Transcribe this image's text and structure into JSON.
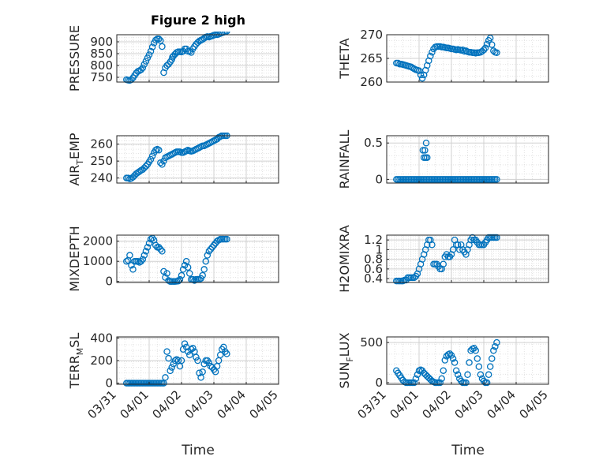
{
  "figure": {
    "title": "Figure 2 high",
    "xlabel": "Time"
  },
  "style": {
    "marker_color": "#0072BD",
    "axis_color": "#262626",
    "grid_color": "#dcdcdc"
  },
  "chart_data": [
    {
      "type": "scatter",
      "id": "pressure",
      "ylabel": "PRESSURE",
      "ylim": [
        730,
        930
      ],
      "yticks": [
        750,
        800,
        850,
        900
      ],
      "xlim": [
        0,
        5
      ],
      "xticks": [
        "03/31",
        "04/01",
        "04/02",
        "04/03",
        "04/04",
        "04/05"
      ],
      "grid": true,
      "x": [
        0.3,
        0.35,
        0.4,
        0.45,
        0.5,
        0.55,
        0.6,
        0.65,
        0.7,
        0.75,
        0.8,
        0.85,
        0.9,
        0.95,
        1.0,
        1.05,
        1.1,
        1.15,
        1.2,
        1.25,
        1.3,
        1.35,
        1.4,
        1.45,
        1.5,
        1.55,
        1.6,
        1.65,
        1.7,
        1.72,
        1.75,
        1.8,
        1.85,
        1.9,
        1.95,
        2.0,
        2.05,
        2.1,
        2.15,
        2.2,
        2.25,
        2.3,
        2.35,
        2.4,
        2.45,
        2.5,
        2.55,
        2.6,
        2.65,
        2.7,
        2.75,
        2.8,
        2.85,
        2.9,
        2.95,
        3.0,
        3.05,
        3.1,
        3.15,
        3.2,
        3.25,
        3.3,
        3.35,
        3.4
      ],
      "y": [
        740,
        738,
        737,
        740,
        748,
        758,
        768,
        775,
        778,
        782,
        790,
        805,
        818,
        832,
        845,
        860,
        878,
        895,
        907,
        912,
        912,
        905,
        880,
        770,
        790,
        800,
        805,
        815,
        825,
        835,
        840,
        848,
        855,
        858,
        858,
        857,
        860,
        870,
        870,
        860,
        860,
        855,
        870,
        880,
        890,
        897,
        903,
        907,
        910,
        915,
        920,
        922,
        920,
        923,
        925,
        928,
        930,
        930,
        932,
        935,
        938,
        940,
        942,
        945
      ]
    },
    {
      "type": "scatter",
      "id": "theta",
      "ylabel": "THETA",
      "ylim": [
        260,
        270
      ],
      "yticks": [
        260,
        265,
        270
      ],
      "xlim": [
        0,
        5
      ],
      "xticks": [
        "03/31",
        "04/01",
        "04/02",
        "04/03",
        "04/04",
        "04/05"
      ],
      "grid": true,
      "x": [
        0.3,
        0.35,
        0.4,
        0.45,
        0.5,
        0.55,
        0.6,
        0.65,
        0.7,
        0.75,
        0.8,
        0.85,
        0.9,
        0.95,
        1.0,
        1.05,
        1.1,
        1.15,
        1.2,
        1.25,
        1.3,
        1.35,
        1.4,
        1.45,
        1.5,
        1.55,
        1.6,
        1.65,
        1.7,
        1.75,
        1.8,
        1.85,
        1.9,
        1.95,
        2.0,
        2.05,
        2.1,
        2.15,
        2.2,
        2.25,
        2.3,
        2.35,
        2.4,
        2.45,
        2.5,
        2.55,
        2.6,
        2.65,
        2.7,
        2.75,
        2.8,
        2.85,
        2.9,
        2.95,
        3.0,
        3.05,
        3.1,
        3.15,
        3.2,
        3.25,
        3.3,
        3.35,
        3.4
      ],
      "y": [
        264,
        264,
        263.8,
        263.8,
        263.7,
        263.6,
        263.5,
        263.4,
        263.3,
        263.2,
        263.0,
        262.8,
        262.6,
        262.5,
        262.4,
        261.5,
        260.8,
        261.5,
        262.5,
        263.5,
        264.5,
        265.5,
        266.3,
        267.0,
        267.4,
        267.5,
        267.5,
        267.5,
        267.4,
        267.4,
        267.3,
        267.2,
        267.2,
        267.1,
        267.0,
        267.0,
        266.9,
        266.8,
        266.9,
        266.8,
        266.7,
        266.8,
        266.5,
        266.6,
        266.4,
        266.3,
        266.3,
        266.2,
        266.2,
        266.1,
        266.2,
        266.2,
        266.3,
        266.5,
        266.8,
        267.2,
        268.0,
        268.8,
        269.3,
        267.9,
        266.6,
        266.3,
        266.2
      ]
    },
    {
      "type": "scatter",
      "id": "air_temp",
      "ylabel": "AIR",
      "ylabel_sub": "T",
      "ylabel_rest": "EMP",
      "ylim": [
        237,
        265
      ],
      "yticks": [
        240,
        250,
        260
      ],
      "xlim": [
        0,
        5
      ],
      "xticks": [
        "03/31",
        "04/01",
        "04/02",
        "04/03",
        "04/04",
        "04/05"
      ],
      "grid": true,
      "x": [
        0.3,
        0.35,
        0.4,
        0.45,
        0.5,
        0.55,
        0.6,
        0.65,
        0.7,
        0.75,
        0.8,
        0.85,
        0.9,
        0.95,
        1.0,
        1.05,
        1.1,
        1.15,
        1.2,
        1.25,
        1.3,
        1.35,
        1.4,
        1.45,
        1.5,
        1.55,
        1.6,
        1.65,
        1.7,
        1.75,
        1.8,
        1.85,
        1.9,
        1.95,
        2.0,
        2.05,
        2.1,
        2.15,
        2.2,
        2.25,
        2.3,
        2.35,
        2.4,
        2.45,
        2.5,
        2.55,
        2.6,
        2.65,
        2.7,
        2.75,
        2.8,
        2.85,
        2.9,
        2.95,
        3.0,
        3.05,
        3.1,
        3.15,
        3.2,
        3.25,
        3.3,
        3.35,
        3.4
      ],
      "y": [
        240,
        240,
        239.5,
        239.8,
        240.5,
        241.5,
        242.5,
        243.2,
        243.8,
        244.5,
        245,
        246,
        247,
        248,
        249.5,
        251,
        253,
        255,
        256.5,
        257,
        256.5,
        249,
        248,
        250,
        252,
        252.5,
        253,
        253.5,
        254,
        254.5,
        255,
        255.5,
        255.5,
        255.5,
        255,
        255,
        255.5,
        256,
        256.5,
        256,
        255.8,
        256,
        256.5,
        257,
        257.5,
        258,
        258.5,
        259,
        259,
        259.5,
        260,
        260.5,
        261,
        261.5,
        262,
        262.5,
        263,
        264,
        264.5,
        265,
        265,
        265,
        265
      ]
    },
    {
      "type": "scatter",
      "id": "rainfall",
      "ylabel": "RAINFALL",
      "ylim": [
        -0.05,
        0.6
      ],
      "yticks": [
        0,
        0.5
      ],
      "xlim": [
        0,
        5
      ],
      "xticks": [
        "03/31",
        "04/01",
        "04/02",
        "04/03",
        "04/04",
        "04/05"
      ],
      "grid": true,
      "x": [
        0.3,
        0.35,
        0.4,
        0.45,
        0.5,
        0.55,
        0.6,
        0.65,
        0.7,
        0.75,
        0.8,
        0.85,
        0.9,
        0.95,
        1.0,
        1.05,
        1.1,
        1.15,
        1.2,
        1.25,
        1.3,
        1.35,
        1.4,
        1.45,
        1.5,
        1.55,
        1.6,
        1.65,
        1.7,
        1.75,
        1.8,
        1.85,
        1.9,
        1.95,
        2.0,
        2.05,
        2.1,
        2.15,
        2.2,
        2.25,
        2.3,
        2.35,
        2.4,
        2.45,
        2.5,
        2.55,
        2.6,
        2.65,
        2.7,
        2.75,
        2.8,
        2.85,
        2.9,
        2.95,
        3.0,
        3.05,
        3.1,
        3.15,
        3.2,
        3.25,
        3.3,
        3.35,
        3.4,
        1.12,
        1.15,
        1.18,
        1.2,
        1.22,
        1.25
      ],
      "y": [
        0,
        0,
        0,
        0,
        0,
        0,
        0,
        0,
        0,
        0,
        0,
        0,
        0,
        0,
        0,
        0,
        0,
        0,
        0,
        0,
        0,
        0,
        0,
        0,
        0,
        0,
        0,
        0,
        0,
        0,
        0,
        0,
        0,
        0,
        0,
        0,
        0,
        0,
        0,
        0,
        0,
        0,
        0,
        0,
        0,
        0,
        0,
        0,
        0,
        0,
        0,
        0,
        0,
        0,
        0,
        0,
        0,
        0,
        0,
        0,
        0,
        0,
        0,
        0.4,
        0.3,
        0.4,
        0.3,
        0.5,
        0.3
      ]
    },
    {
      "type": "scatter",
      "id": "mixdepth",
      "ylabel": "MIXDEPTH",
      "ylim": [
        -50,
        2300
      ],
      "yticks": [
        0,
        1000,
        2000
      ],
      "xlim": [
        0,
        5
      ],
      "xticks": [
        "03/31",
        "04/01",
        "04/02",
        "04/03",
        "04/04",
        "04/05"
      ],
      "grid": true,
      "x": [
        0.3,
        0.35,
        0.4,
        0.45,
        0.5,
        0.55,
        0.6,
        0.65,
        0.7,
        0.75,
        0.8,
        0.85,
        0.9,
        0.95,
        1.0,
        1.05,
        1.1,
        1.15,
        1.2,
        1.25,
        1.3,
        1.35,
        1.4,
        1.45,
        1.5,
        1.55,
        1.6,
        1.65,
        1.7,
        1.75,
        1.8,
        1.85,
        1.9,
        1.95,
        2.0,
        2.05,
        2.1,
        2.15,
        2.2,
        2.25,
        2.3,
        2.35,
        2.4,
        2.45,
        2.5,
        2.55,
        2.6,
        2.65,
        2.7,
        2.75,
        2.8,
        2.85,
        2.9,
        2.95,
        3.0,
        3.05,
        3.1,
        3.15,
        3.2,
        3.25,
        3.3,
        3.35,
        3.4
      ],
      "y": [
        1000,
        1050,
        1300,
        800,
        600,
        1000,
        1000,
        1000,
        950,
        1000,
        1100,
        1300,
        1500,
        1700,
        1900,
        2100,
        2150,
        2050,
        1800,
        1700,
        1700,
        1600,
        1500,
        500,
        200,
        400,
        50,
        0,
        0,
        0,
        0,
        10,
        20,
        100,
        300,
        600,
        800,
        1000,
        700,
        400,
        100,
        100,
        50,
        100,
        100,
        100,
        150,
        300,
        600,
        1000,
        1300,
        1500,
        1600,
        1700,
        1800,
        1900,
        2000,
        2050,
        2100,
        2100,
        2100,
        2100,
        2100
      ]
    },
    {
      "type": "scatter",
      "id": "h2omixra",
      "ylabel": "H2OMIXRA",
      "ylim": [
        0.32,
        1.3
      ],
      "yticks": [
        0.4,
        0.6,
        0.8,
        1,
        1.2
      ],
      "xlim": [
        0,
        5
      ],
      "xticks": [
        "03/31",
        "04/01",
        "04/02",
        "04/03",
        "04/04",
        "04/05"
      ],
      "grid": true,
      "x": [
        0.3,
        0.35,
        0.4,
        0.45,
        0.5,
        0.55,
        0.6,
        0.65,
        0.7,
        0.75,
        0.8,
        0.85,
        0.9,
        0.95,
        1.0,
        1.05,
        1.1,
        1.15,
        1.2,
        1.25,
        1.3,
        1.35,
        1.4,
        1.45,
        1.5,
        1.55,
        1.6,
        1.65,
        1.7,
        1.75,
        1.8,
        1.85,
        1.9,
        1.95,
        2.0,
        2.05,
        2.1,
        2.15,
        2.2,
        2.25,
        2.3,
        2.35,
        2.4,
        2.45,
        2.5,
        2.55,
        2.6,
        2.65,
        2.7,
        2.75,
        2.8,
        2.85,
        2.9,
        2.95,
        3.0,
        3.05,
        3.1,
        3.15,
        3.2,
        3.25,
        3.3,
        3.35,
        3.4
      ],
      "y": [
        0.35,
        0.35,
        0.35,
        0.35,
        0.35,
        0.37,
        0.37,
        0.42,
        0.42,
        0.42,
        0.42,
        0.42,
        0.45,
        0.5,
        0.6,
        0.7,
        0.8,
        0.9,
        1.0,
        1.1,
        1.2,
        1.2,
        1.1,
        0.7,
        0.7,
        0.7,
        0.65,
        0.6,
        0.6,
        0.7,
        0.85,
        0.9,
        0.85,
        0.85,
        0.9,
        1.0,
        1.2,
        1.1,
        1.1,
        1.0,
        1.1,
        1.0,
        0.95,
        0.9,
        1.0,
        1.1,
        1.2,
        1.25,
        1.2,
        1.2,
        1.15,
        1.1,
        1.1,
        1.1,
        1.1,
        1.15,
        1.2,
        1.25,
        1.25,
        1.25,
        1.25,
        1.25,
        1.25
      ]
    },
    {
      "type": "scatter",
      "id": "terr_msl",
      "ylabel": "TERR",
      "ylabel_sub": "M",
      "ylabel_rest": "SL",
      "ylim": [
        -10,
        410
      ],
      "yticks": [
        0,
        200,
        400
      ],
      "xlim": [
        0,
        5
      ],
      "xticks": [
        "03/31",
        "04/01",
        "04/02",
        "04/03",
        "04/04",
        "04/05"
      ],
      "grid": true,
      "x": [
        0.3,
        0.35,
        0.4,
        0.45,
        0.5,
        0.55,
        0.6,
        0.65,
        0.7,
        0.75,
        0.8,
        0.85,
        0.9,
        0.95,
        1.0,
        1.05,
        1.1,
        1.15,
        1.2,
        1.25,
        1.3,
        1.35,
        1.4,
        1.45,
        1.5,
        1.55,
        1.6,
        1.65,
        1.7,
        1.75,
        1.8,
        1.85,
        1.9,
        1.95,
        2.0,
        2.05,
        2.1,
        2.15,
        2.2,
        2.25,
        2.3,
        2.35,
        2.4,
        2.45,
        2.5,
        2.55,
        2.6,
        2.65,
        2.7,
        2.75,
        2.8,
        2.85,
        2.9,
        2.95,
        3.0,
        3.05,
        3.1,
        3.15,
        3.2,
        3.25,
        3.3,
        3.35,
        3.4
      ],
      "y": [
        0,
        0,
        0,
        0,
        0,
        0,
        0,
        0,
        0,
        0,
        0,
        0,
        0,
        0,
        0,
        0,
        0,
        0,
        0,
        0,
        0,
        0,
        0,
        0,
        50,
        280,
        220,
        110,
        140,
        170,
        200,
        210,
        200,
        150,
        200,
        300,
        350,
        320,
        280,
        250,
        300,
        310,
        280,
        230,
        200,
        90,
        50,
        100,
        170,
        200,
        200,
        180,
        150,
        140,
        120,
        100,
        150,
        200,
        250,
        300,
        320,
        280,
        260
      ]
    },
    {
      "type": "scatter",
      "id": "sun_flux",
      "ylabel": "SUN",
      "ylabel_sub": "F",
      "ylabel_rest": "LUX",
      "ylim": [
        -20,
        570
      ],
      "yticks": [
        0,
        500
      ],
      "xlim": [
        0,
        5
      ],
      "xticks": [
        "03/31",
        "04/01",
        "04/02",
        "04/03",
        "04/04",
        "04/05"
      ],
      "grid": true,
      "x": [
        0.3,
        0.35,
        0.4,
        0.45,
        0.5,
        0.55,
        0.6,
        0.65,
        0.7,
        0.75,
        0.8,
        0.85,
        0.9,
        0.95,
        1.0,
        1.05,
        1.1,
        1.15,
        1.2,
        1.25,
        1.3,
        1.35,
        1.4,
        1.45,
        1.5,
        1.55,
        1.6,
        1.65,
        1.7,
        1.75,
        1.8,
        1.85,
        1.9,
        1.95,
        2.0,
        2.05,
        2.1,
        2.15,
        2.2,
        2.25,
        2.3,
        2.35,
        2.4,
        2.45,
        2.5,
        2.55,
        2.6,
        2.65,
        2.7,
        2.75,
        2.8,
        2.85,
        2.9,
        2.95,
        3.0,
        3.05,
        3.1,
        3.15,
        3.2,
        3.25,
        3.3,
        3.35,
        3.4
      ],
      "y": [
        150,
        120,
        90,
        60,
        30,
        10,
        0,
        0,
        0,
        0,
        0,
        0,
        50,
        100,
        150,
        160,
        150,
        120,
        100,
        80,
        60,
        40,
        20,
        10,
        0,
        0,
        0,
        0,
        50,
        150,
        280,
        330,
        350,
        360,
        340,
        300,
        250,
        150,
        100,
        50,
        20,
        0,
        0,
        0,
        100,
        250,
        400,
        420,
        430,
        400,
        300,
        200,
        100,
        50,
        20,
        0,
        0,
        100,
        200,
        300,
        400,
        450,
        500
      ]
    }
  ]
}
